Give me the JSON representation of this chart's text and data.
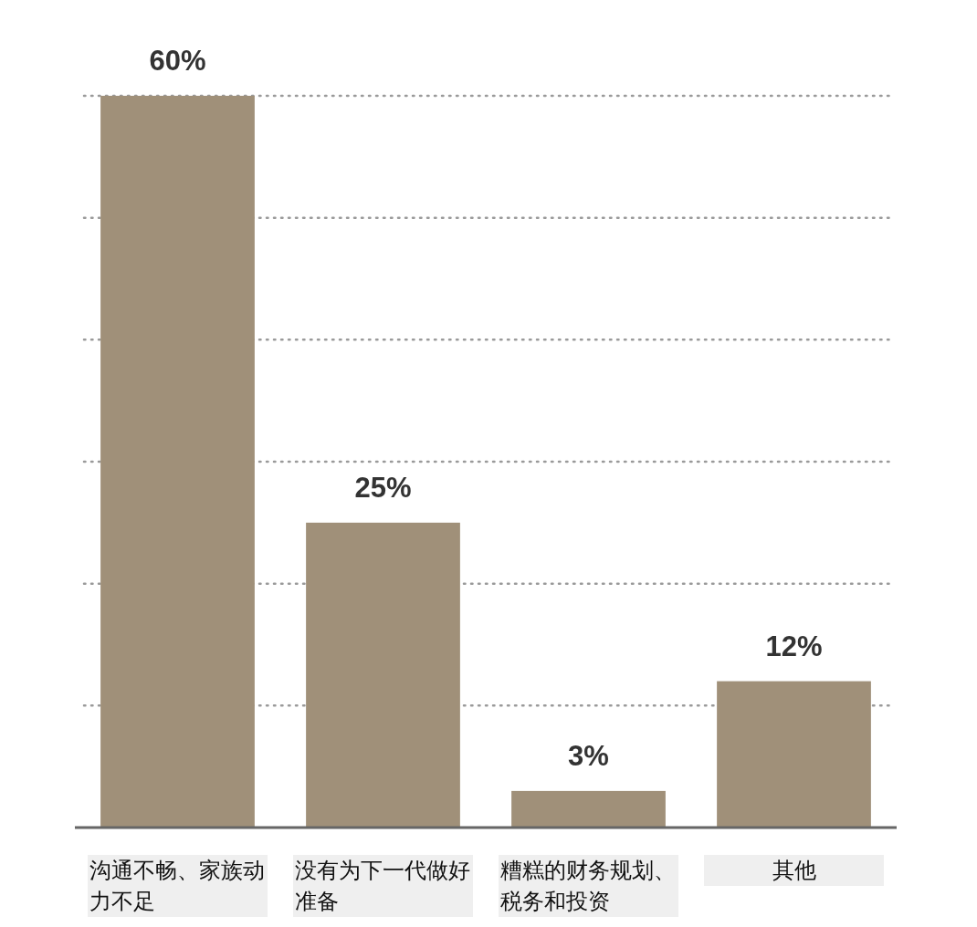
{
  "chart_data": {
    "type": "bar",
    "categories": [
      "沟通不畅、家族动力不足",
      "没有为下一代做好准备",
      "糟糕的财务规划、税务和投资",
      "其他"
    ],
    "values": [
      60,
      25,
      3,
      12
    ],
    "value_labels": [
      "60%",
      "25%",
      "3%",
      "12%"
    ],
    "color": "#a09079",
    "ylim": [
      0,
      60
    ],
    "yticks": [
      {
        "value": 0,
        "label": null
      },
      {
        "value": 10,
        "label": null
      },
      {
        "value": 20,
        "label": null
      },
      {
        "value": 30,
        "label": null
      },
      {
        "value": 40,
        "label": null
      },
      {
        "value": 50,
        "label": null
      },
      {
        "value": 60,
        "label": null
      }
    ],
    "grid": "y",
    "tick_labels": "x"
  }
}
